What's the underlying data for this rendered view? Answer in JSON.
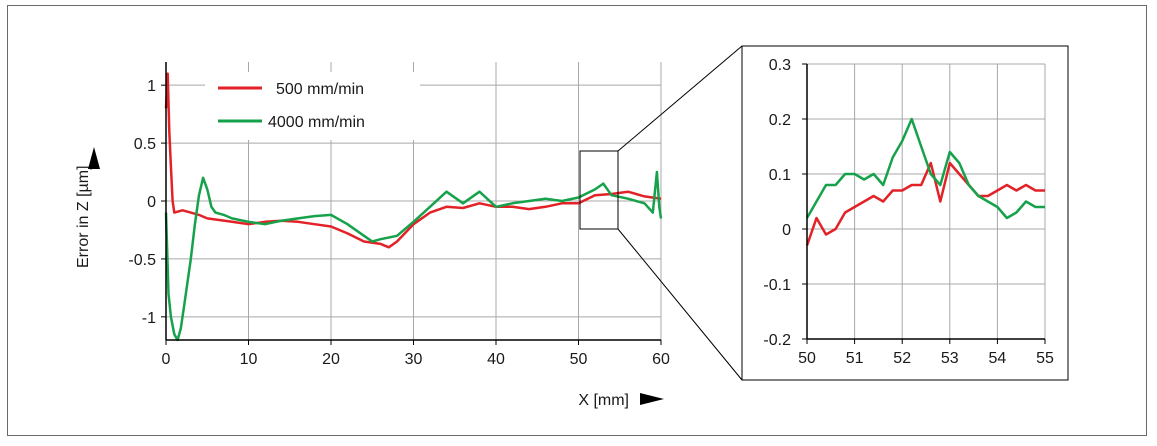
{
  "colors": {
    "red": "#e32228",
    "green": "#16a24a",
    "grid": "#a8a8a8",
    "axis": "#000000"
  },
  "chart_data": [
    {
      "type": "line",
      "title": "",
      "xlabel": "X [mm]",
      "ylabel": "Error in Z [µm]",
      "xlim": [
        0,
        60
      ],
      "ylim": [
        -1.2,
        1.2
      ],
      "xticks": [
        "0",
        "10",
        "20",
        "30",
        "40",
        "50",
        "60"
      ],
      "yticks": [
        "1",
        "0.5",
        "0",
        "-0.5",
        "-1"
      ],
      "grid": true,
      "legend_position": "top-left",
      "series": [
        {
          "name": "500 mm/min",
          "color": "#e32228",
          "x": [
            0,
            0.2,
            0.4,
            0.6,
            0.8,
            1,
            2,
            3,
            4,
            5,
            6,
            8,
            10,
            12,
            14,
            16,
            18,
            20,
            22,
            24,
            26,
            27,
            28,
            30,
            32,
            34,
            36,
            38,
            40,
            42,
            44,
            46,
            48,
            50,
            52,
            54,
            56,
            58,
            60
          ],
          "y": [
            0.8,
            1.1,
            0.6,
            0.3,
            0.0,
            -0.1,
            -0.08,
            -0.1,
            -0.12,
            -0.15,
            -0.16,
            -0.18,
            -0.2,
            -0.18,
            -0.17,
            -0.18,
            -0.2,
            -0.22,
            -0.28,
            -0.35,
            -0.37,
            -0.4,
            -0.35,
            -0.2,
            -0.1,
            -0.05,
            -0.06,
            -0.02,
            -0.05,
            -0.05,
            -0.07,
            -0.05,
            -0.02,
            -0.02,
            0.05,
            0.06,
            0.08,
            0.04,
            0.02
          ]
        },
        {
          "name": "4000 mm/min",
          "color": "#16a24a",
          "x": [
            0,
            0.3,
            0.6,
            1,
            1.4,
            1.8,
            2.2,
            3,
            3.5,
            4,
            4.5,
            5,
            5.5,
            6,
            7,
            8,
            10,
            12,
            14,
            16,
            18,
            20,
            22,
            24,
            25,
            26,
            28,
            30,
            32,
            34,
            36,
            38,
            40,
            42,
            44,
            46,
            48,
            50,
            52,
            53,
            54,
            56,
            58,
            59,
            59.5,
            59.8,
            60
          ],
          "y": [
            -0.1,
            -0.8,
            -1.0,
            -1.15,
            -1.2,
            -1.1,
            -0.9,
            -0.5,
            -0.2,
            0.05,
            0.2,
            0.1,
            -0.05,
            -0.1,
            -0.12,
            -0.15,
            -0.18,
            -0.2,
            -0.17,
            -0.15,
            -0.13,
            -0.12,
            -0.2,
            -0.3,
            -0.35,
            -0.33,
            -0.3,
            -0.18,
            -0.05,
            0.08,
            -0.02,
            0.08,
            -0.05,
            -0.02,
            0.0,
            0.02,
            0.0,
            0.03,
            0.1,
            0.15,
            0.05,
            0.02,
            -0.02,
            -0.1,
            0.25,
            -0.05,
            -0.15
          ]
        }
      ]
    },
    {
      "type": "line",
      "title": "",
      "xlabel": "",
      "ylabel": "",
      "xlim": [
        50,
        55
      ],
      "ylim": [
        -0.2,
        0.3
      ],
      "xticks": [
        "50",
        "51",
        "52",
        "53",
        "54",
        "55"
      ],
      "yticks": [
        "0.3",
        "0.2",
        "0.1",
        "0",
        "-0.1",
        "-0.2"
      ],
      "grid": true,
      "series": [
        {
          "name": "500 mm/min",
          "color": "#e32228",
          "x": [
            50,
            50.2,
            50.4,
            50.6,
            50.8,
            51,
            51.2,
            51.4,
            51.6,
            51.8,
            52,
            52.2,
            52.4,
            52.6,
            52.8,
            53,
            53.2,
            53.4,
            53.6,
            53.8,
            54,
            54.2,
            54.4,
            54.6,
            54.8,
            55
          ],
          "y": [
            -0.03,
            0.02,
            -0.01,
            0.0,
            0.03,
            0.04,
            0.05,
            0.06,
            0.05,
            0.07,
            0.07,
            0.08,
            0.08,
            0.12,
            0.05,
            0.12,
            0.1,
            0.08,
            0.06,
            0.06,
            0.07,
            0.08,
            0.07,
            0.08,
            0.07,
            0.07
          ]
        },
        {
          "name": "4000 mm/min",
          "color": "#16a24a",
          "x": [
            50,
            50.2,
            50.4,
            50.6,
            50.8,
            51,
            51.2,
            51.4,
            51.6,
            51.8,
            52,
            52.2,
            52.4,
            52.6,
            52.8,
            53,
            53.2,
            53.4,
            53.6,
            53.8,
            54,
            54.2,
            54.4,
            54.6,
            54.8,
            55
          ],
          "y": [
            0.02,
            0.05,
            0.08,
            0.08,
            0.1,
            0.1,
            0.09,
            0.1,
            0.08,
            0.13,
            0.16,
            0.2,
            0.15,
            0.1,
            0.08,
            0.14,
            0.12,
            0.08,
            0.06,
            0.05,
            0.04,
            0.02,
            0.03,
            0.05,
            0.04,
            0.04
          ]
        }
      ]
    }
  ]
}
